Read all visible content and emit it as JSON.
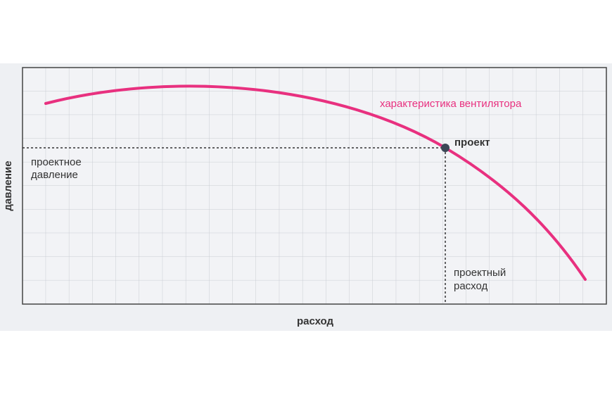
{
  "labels": {
    "curve": "характеристика вентилятора",
    "point": "проект",
    "design_pressure": [
      "проектное",
      "давление"
    ],
    "design_flow": [
      "проектный",
      "расход"
    ],
    "y_axis": "давление",
    "x_axis": "расход"
  }
}
